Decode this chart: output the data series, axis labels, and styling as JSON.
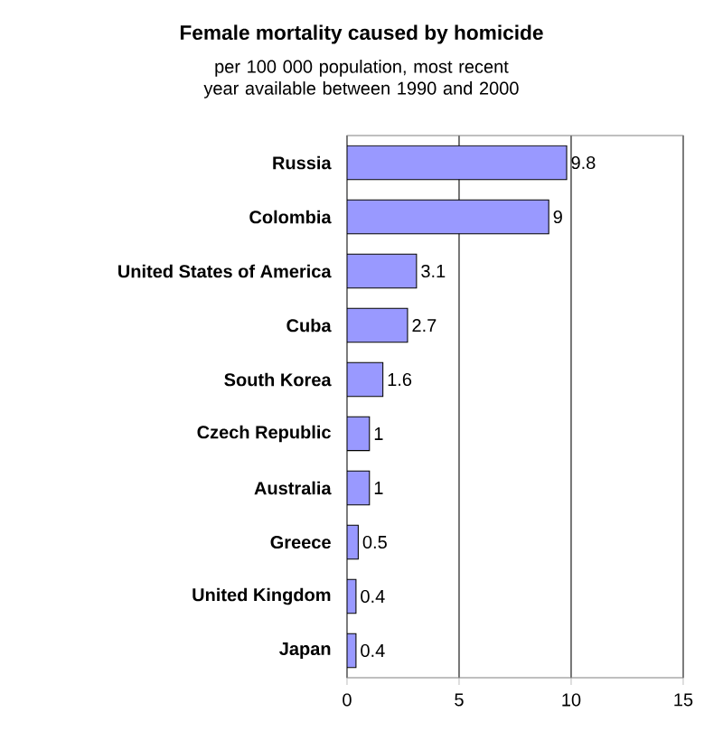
{
  "chart_data": {
    "type": "bar",
    "orientation": "horizontal",
    "title": "Female mortality caused by homicide",
    "subtitle": "per 100 000 population, most recent year available between 1990 and 2000",
    "categories": [
      "Russia",
      "Colombia",
      "United States of America",
      "Cuba",
      "South Korea",
      "Czech Republic",
      "Australia",
      "Greece",
      "United Kingdom",
      "Japan"
    ],
    "values": [
      9.8,
      9,
      3.1,
      2.7,
      1.6,
      1,
      1,
      0.5,
      0.4,
      0.4
    ],
    "color": "#9999ff",
    "xlim": [
      0,
      15
    ],
    "xticks": [
      0,
      5,
      10,
      15
    ],
    "grid": "x",
    "data_labels": true
  }
}
